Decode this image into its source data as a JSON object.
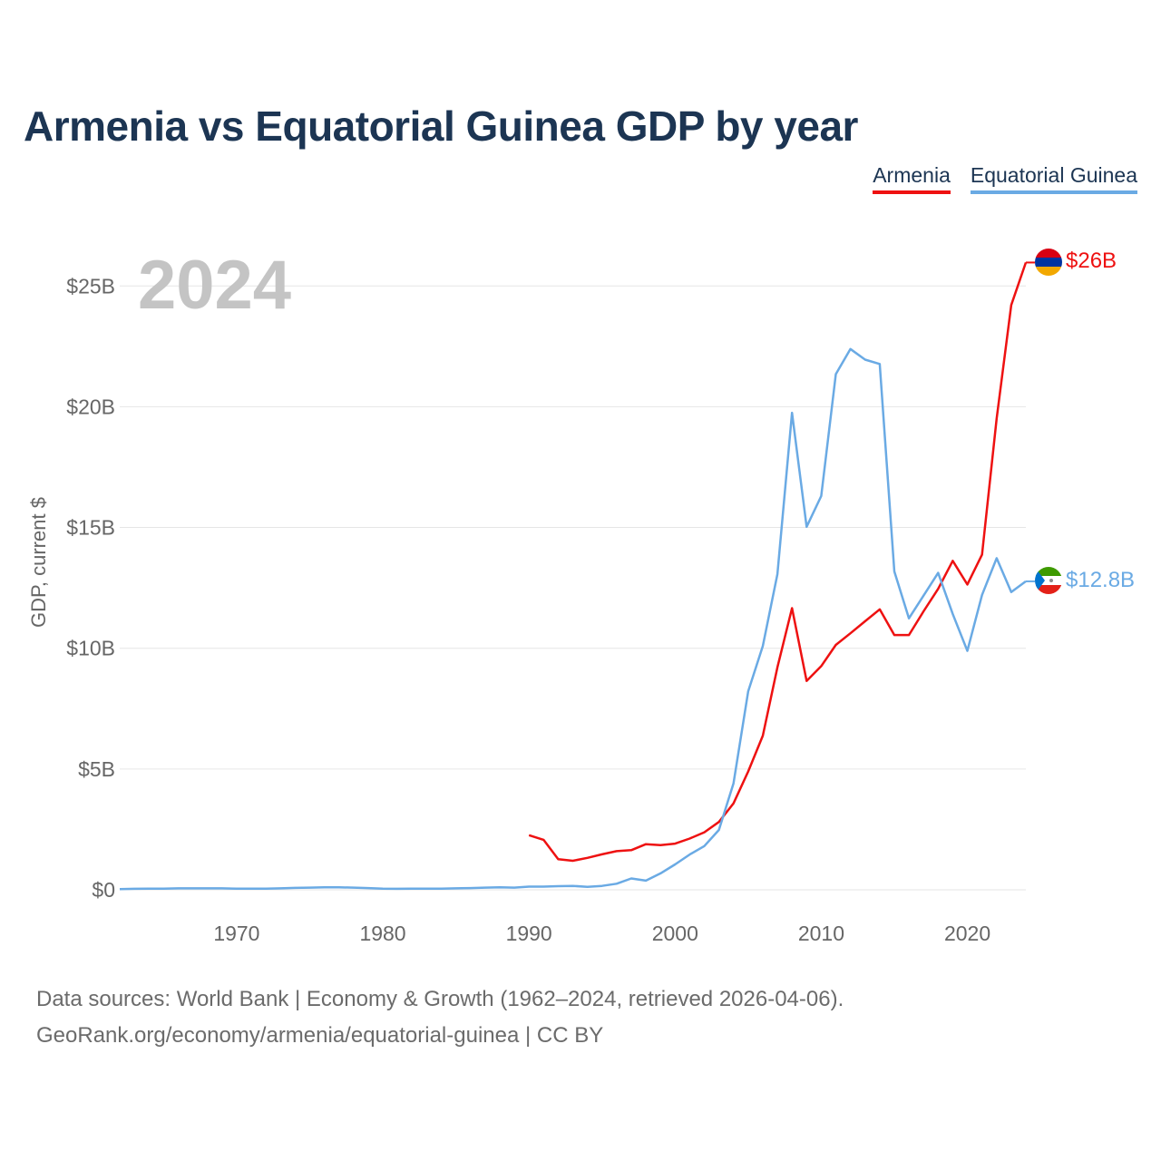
{
  "title": "Armenia vs Equatorial Guinea GDP by year",
  "legend": [
    {
      "label": "Armenia",
      "color": "#ee1111"
    },
    {
      "label": "Equatorial Guinea",
      "color": "#6aaae4"
    }
  ],
  "year_watermark": "2024",
  "footer": {
    "line1": "Data sources: World Bank | Economy & Growth (1962–2024, retrieved 2026-04-06).",
    "line2": "GeoRank.org/economy/armenia/equatorial-guinea | CC BY"
  },
  "chart_data": {
    "type": "line",
    "title": "Armenia vs Equatorial Guinea GDP by year",
    "xlabel": "",
    "ylabel": "GDP, current $",
    "xlim": [
      1962,
      2024
    ],
    "ylim": [
      0,
      27
    ],
    "x_ticks": [
      1970,
      1980,
      1990,
      2000,
      2010,
      2020
    ],
    "x_tick_labels": [
      "1970",
      "1980",
      "1990",
      "2000",
      "2010",
      "2020"
    ],
    "y_ticks": [
      0,
      5,
      10,
      15,
      20,
      25
    ],
    "y_tick_labels": [
      "$0",
      "$5B",
      "$10B",
      "$15B",
      "$20B",
      "$25B"
    ],
    "grid": true,
    "legend_position": "top-right",
    "series": [
      {
        "name": "Armenia",
        "color": "#ee1111",
        "end_label": "$26B",
        "flag": "armenia-flag",
        "x": [
          1990,
          1991,
          1992,
          1993,
          1994,
          1995,
          1996,
          1997,
          1998,
          1999,
          2000,
          2001,
          2002,
          2003,
          2004,
          2005,
          2006,
          2007,
          2008,
          2009,
          2010,
          2011,
          2012,
          2013,
          2014,
          2015,
          2016,
          2017,
          2018,
          2019,
          2020,
          2021,
          2022,
          2023,
          2024
        ],
        "values": [
          2.26,
          2.07,
          1.27,
          1.2,
          1.32,
          1.47,
          1.6,
          1.64,
          1.89,
          1.85,
          1.91,
          2.12,
          2.38,
          2.81,
          3.58,
          4.9,
          6.38,
          9.21,
          11.66,
          8.65,
          9.26,
          10.14,
          10.62,
          11.12,
          11.61,
          10.55,
          10.55,
          11.53,
          12.46,
          13.62,
          12.64,
          13.88,
          19.51,
          24.21,
          25.97
        ]
      },
      {
        "name": "Equatorial Guinea",
        "color": "#6aaae4",
        "end_label": "$12.8B",
        "flag": "equatorial-guinea-flag",
        "x": [
          1962,
          1963,
          1964,
          1965,
          1966,
          1967,
          1968,
          1969,
          1970,
          1971,
          1972,
          1973,
          1974,
          1975,
          1976,
          1977,
          1978,
          1979,
          1980,
          1981,
          1982,
          1983,
          1984,
          1985,
          1986,
          1987,
          1988,
          1989,
          1990,
          1991,
          1992,
          1993,
          1994,
          1995,
          1996,
          1997,
          1998,
          1999,
          2000,
          2001,
          2002,
          2003,
          2004,
          2005,
          2006,
          2007,
          2008,
          2009,
          2010,
          2011,
          2012,
          2013,
          2014,
          2015,
          2016,
          2017,
          2018,
          2019,
          2020,
          2021,
          2022,
          2023,
          2024
        ],
        "values": [
          0.03,
          0.04,
          0.05,
          0.05,
          0.06,
          0.06,
          0.06,
          0.06,
          0.05,
          0.05,
          0.05,
          0.06,
          0.08,
          0.09,
          0.1,
          0.1,
          0.09,
          0.07,
          0.05,
          0.04,
          0.05,
          0.05,
          0.05,
          0.06,
          0.07,
          0.09,
          0.1,
          0.09,
          0.13,
          0.13,
          0.15,
          0.16,
          0.12,
          0.16,
          0.25,
          0.47,
          0.38,
          0.68,
          1.05,
          1.46,
          1.81,
          2.48,
          4.41,
          8.22,
          10.09,
          13.07,
          19.75,
          15.03,
          16.3,
          21.35,
          22.39,
          21.95,
          21.77,
          13.18,
          11.24,
          12.18,
          13.12,
          11.42,
          9.89,
          12.21,
          13.73,
          12.33,
          12.77
        ]
      }
    ]
  }
}
